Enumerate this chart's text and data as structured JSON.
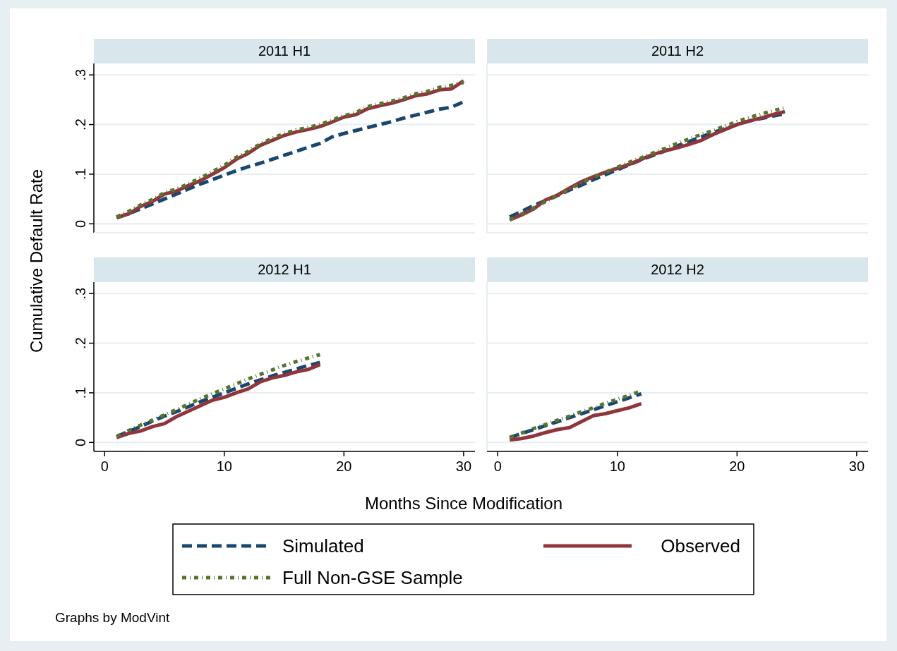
{
  "chart_data": [
    {
      "type": "line",
      "title": "2011 H1",
      "ylabel": "Cumulative Default Rate",
      "xlim": [
        -0.9,
        30.95
      ],
      "ylim": [
        -0.018,
        0.323
      ],
      "xticks": [
        0,
        10,
        20,
        30
      ],
      "yticks": [
        {
          "value": 0,
          "label": "0"
        },
        {
          "value": 0.1,
          "label": ".1"
        },
        {
          "value": 0.2,
          "label": ".2"
        },
        {
          "value": 0.3,
          "label": ".3"
        }
      ],
      "grid": "y",
      "tick_labels": "y",
      "legend": "bottom",
      "marker": "none",
      "x": [
        1,
        2,
        3,
        4,
        5,
        6,
        7,
        8,
        9,
        10,
        11,
        12,
        13,
        14,
        15,
        16,
        17,
        18,
        19,
        20,
        21,
        22,
        23,
        24,
        25,
        26,
        27,
        28,
        29,
        30
      ],
      "series": [
        {
          "name": "Simulated",
          "color": "#1a476f",
          "line_style": "dashed",
          "values": [
            0.012,
            0.02,
            0.03,
            0.04,
            0.05,
            0.06,
            0.07,
            0.08,
            0.089,
            0.098,
            0.107,
            0.115,
            0.122,
            0.13,
            0.138,
            0.146,
            0.154,
            0.162,
            0.175,
            0.182,
            0.188,
            0.194,
            0.2,
            0.206,
            0.213,
            0.219,
            0.225,
            0.231,
            0.235,
            0.246
          ]
        },
        {
          "name": "Observed",
          "color": "#90353b",
          "line_style": "solid",
          "values": [
            0.013,
            0.02,
            0.035,
            0.045,
            0.06,
            0.066,
            0.077,
            0.087,
            0.1,
            0.113,
            0.13,
            0.142,
            0.158,
            0.168,
            0.178,
            0.185,
            0.19,
            0.196,
            0.205,
            0.215,
            0.22,
            0.232,
            0.238,
            0.243,
            0.25,
            0.258,
            0.262,
            0.27,
            0.272,
            0.288
          ]
        },
        {
          "name": "Full Non-GSE Sample",
          "color": "#55752f",
          "line_style": "dotted",
          "values": [
            0.014,
            0.025,
            0.038,
            0.049,
            0.063,
            0.07,
            0.081,
            0.092,
            0.105,
            0.118,
            0.134,
            0.146,
            0.161,
            0.172,
            0.182,
            0.189,
            0.194,
            0.2,
            0.209,
            0.218,
            0.224,
            0.236,
            0.242,
            0.247,
            0.254,
            0.262,
            0.267,
            0.275,
            0.279,
            0.285
          ]
        }
      ],
      "annotations": [
        "Graphs by ModVint"
      ]
    },
    {
      "type": "line",
      "title": "2011 H2",
      "xlim": [
        -0.9,
        30.95
      ],
      "ylim": [
        -0.018,
        0.323
      ],
      "xticks": [
        0,
        10,
        20,
        30
      ],
      "yticks": [
        0,
        0.1,
        0.2,
        0.3
      ],
      "grid": "y",
      "tick_labels": false,
      "marker": "none",
      "x": [
        1,
        2,
        3,
        4,
        5,
        6,
        7,
        8,
        9,
        10,
        11,
        12,
        13,
        14,
        15,
        16,
        17,
        18,
        19,
        20,
        21,
        22,
        23,
        24
      ],
      "series": [
        {
          "color": "#1a476f",
          "line_style": "dashed",
          "values": [
            0.014,
            0.025,
            0.037,
            0.047,
            0.057,
            0.068,
            0.078,
            0.089,
            0.099,
            0.109,
            0.119,
            0.129,
            0.138,
            0.147,
            0.157,
            0.166,
            0.175,
            0.184,
            0.192,
            0.2,
            0.207,
            0.212,
            0.217,
            0.222
          ]
        },
        {
          "color": "#90353b",
          "line_style": "solid",
          "values": [
            0.008,
            0.018,
            0.03,
            0.048,
            0.058,
            0.072,
            0.085,
            0.095,
            0.104,
            0.112,
            0.12,
            0.13,
            0.14,
            0.147,
            0.153,
            0.16,
            0.168,
            0.18,
            0.19,
            0.2,
            0.207,
            0.213,
            0.22,
            0.226
          ]
        },
        {
          "color": "#55752f",
          "line_style": "dotted",
          "values": [
            0.008,
            0.02,
            0.032,
            0.045,
            0.057,
            0.07,
            0.082,
            0.094,
            0.104,
            0.114,
            0.124,
            0.133,
            0.143,
            0.152,
            0.162,
            0.171,
            0.18,
            0.188,
            0.197,
            0.206,
            0.214,
            0.221,
            0.228,
            0.234
          ]
        }
      ]
    },
    {
      "type": "line",
      "title": "2012 H1",
      "xlabel": "Months Since Modification",
      "xlim": [
        -0.9,
        30.95
      ],
      "ylim": [
        -0.018,
        0.323
      ],
      "xticks": [
        0,
        10,
        20,
        30
      ],
      "yticks": [
        {
          "value": 0,
          "label": "0"
        },
        {
          "value": 0.1,
          "label": ".1"
        },
        {
          "value": 0.2,
          "label": ".2"
        },
        {
          "value": 0.3,
          "label": ".3"
        }
      ],
      "grid": "y",
      "marker": "none",
      "x": [
        1,
        2,
        3,
        4,
        5,
        6,
        7,
        8,
        9,
        10,
        11,
        12,
        13,
        14,
        15,
        16,
        17,
        18
      ],
      "series": [
        {
          "color": "#1a476f",
          "line_style": "dashed",
          "values": [
            0.012,
            0.022,
            0.032,
            0.043,
            0.053,
            0.062,
            0.072,
            0.082,
            0.091,
            0.1,
            0.109,
            0.118,
            0.126,
            0.134,
            0.141,
            0.148,
            0.155,
            0.161
          ]
        },
        {
          "color": "#90353b",
          "line_style": "solid",
          "values": [
            0.01,
            0.018,
            0.023,
            0.032,
            0.038,
            0.052,
            0.063,
            0.074,
            0.085,
            0.091,
            0.1,
            0.108,
            0.122,
            0.13,
            0.135,
            0.142,
            0.147,
            0.157
          ]
        },
        {
          "color": "#55752f",
          "line_style": "dotted",
          "values": [
            0.012,
            0.024,
            0.035,
            0.045,
            0.056,
            0.066,
            0.077,
            0.088,
            0.098,
            0.108,
            0.118,
            0.128,
            0.137,
            0.146,
            0.155,
            0.163,
            0.17,
            0.177
          ]
        }
      ]
    },
    {
      "type": "line",
      "title": "2012 H2",
      "xlim": [
        -0.9,
        30.95
      ],
      "ylim": [
        -0.018,
        0.323
      ],
      "xticks": [
        0,
        10,
        20,
        30
      ],
      "yticks": [
        0,
        0.1,
        0.2,
        0.3
      ],
      "grid": "y",
      "tick_labels": "x",
      "marker": "none",
      "x": [
        1,
        2,
        3,
        4,
        5,
        6,
        7,
        8,
        9,
        10,
        11,
        12
      ],
      "series": [
        {
          "color": "#1a476f",
          "line_style": "dashed",
          "values": [
            0.01,
            0.018,
            0.026,
            0.034,
            0.042,
            0.05,
            0.058,
            0.066,
            0.074,
            0.082,
            0.09,
            0.098
          ]
        },
        {
          "color": "#90353b",
          "line_style": "solid",
          "values": [
            0.005,
            0.008,
            0.013,
            0.02,
            0.026,
            0.03,
            0.042,
            0.054,
            0.058,
            0.064,
            0.07,
            0.078
          ]
        },
        {
          "color": "#55752f",
          "line_style": "dotted",
          "values": [
            0.01,
            0.019,
            0.028,
            0.036,
            0.045,
            0.053,
            0.062,
            0.07,
            0.079,
            0.087,
            0.095,
            0.104
          ]
        }
      ]
    }
  ]
}
